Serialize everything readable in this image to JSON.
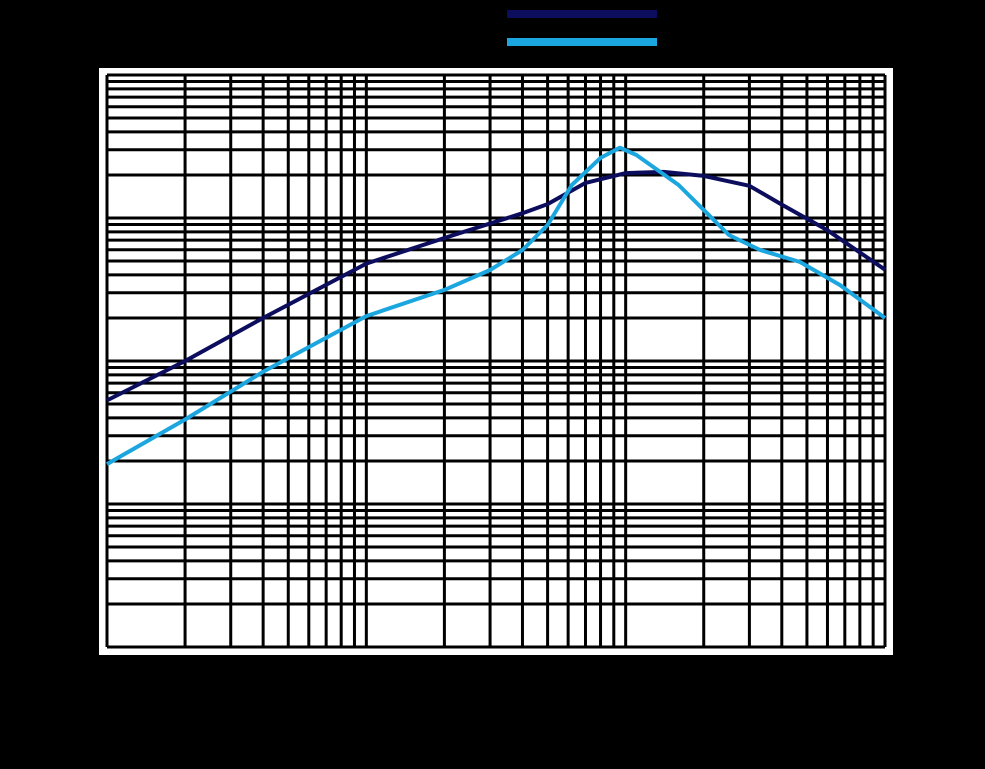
{
  "chart_data": {
    "type": "line",
    "log_x": true,
    "log_y": true,
    "grid": true,
    "xlim": [
      1,
      1000
    ],
    "ylim": [
      1,
      10000
    ],
    "xticks": [
      1,
      2,
      3,
      4,
      5,
      6,
      7,
      8,
      9,
      10,
      20,
      30,
      40,
      50,
      60,
      70,
      80,
      90,
      100,
      200,
      300,
      400,
      500,
      600,
      700,
      800,
      900,
      1000
    ],
    "yticks": [
      1,
      2,
      3,
      4,
      5,
      6,
      7,
      8,
      9,
      10,
      20,
      30,
      40,
      50,
      60,
      70,
      80,
      90,
      100,
      200,
      300,
      400,
      500,
      600,
      700,
      800,
      900,
      1000,
      2000,
      3000,
      4000,
      5000,
      6000,
      7000,
      8000,
      9000,
      10000
    ],
    "series": [
      {
        "color": "#0d0d5e",
        "x": [
          1,
          2,
          4,
          10,
          20,
          40,
          50,
          70,
          100,
          140,
          200,
          300,
          400,
          600,
          1000
        ],
        "values": [
          53,
          100,
          200,
          480,
          725,
          1080,
          1250,
          1760,
          2060,
          2100,
          1970,
          1680,
          1240,
          820,
          435
        ]
      },
      {
        "color": "#1ba6e0",
        "x": [
          1,
          2,
          4,
          10,
          20,
          30,
          40,
          50,
          62,
          80,
          95,
          110,
          160,
          200,
          250,
          330,
          470,
          670,
          1000
        ],
        "values": [
          19,
          39,
          84,
          206,
          314,
          433,
          597,
          894,
          1700,
          2630,
          3100,
          2760,
          1700,
          1140,
          760,
          597,
          492,
          340,
          200
        ]
      }
    ]
  }
}
